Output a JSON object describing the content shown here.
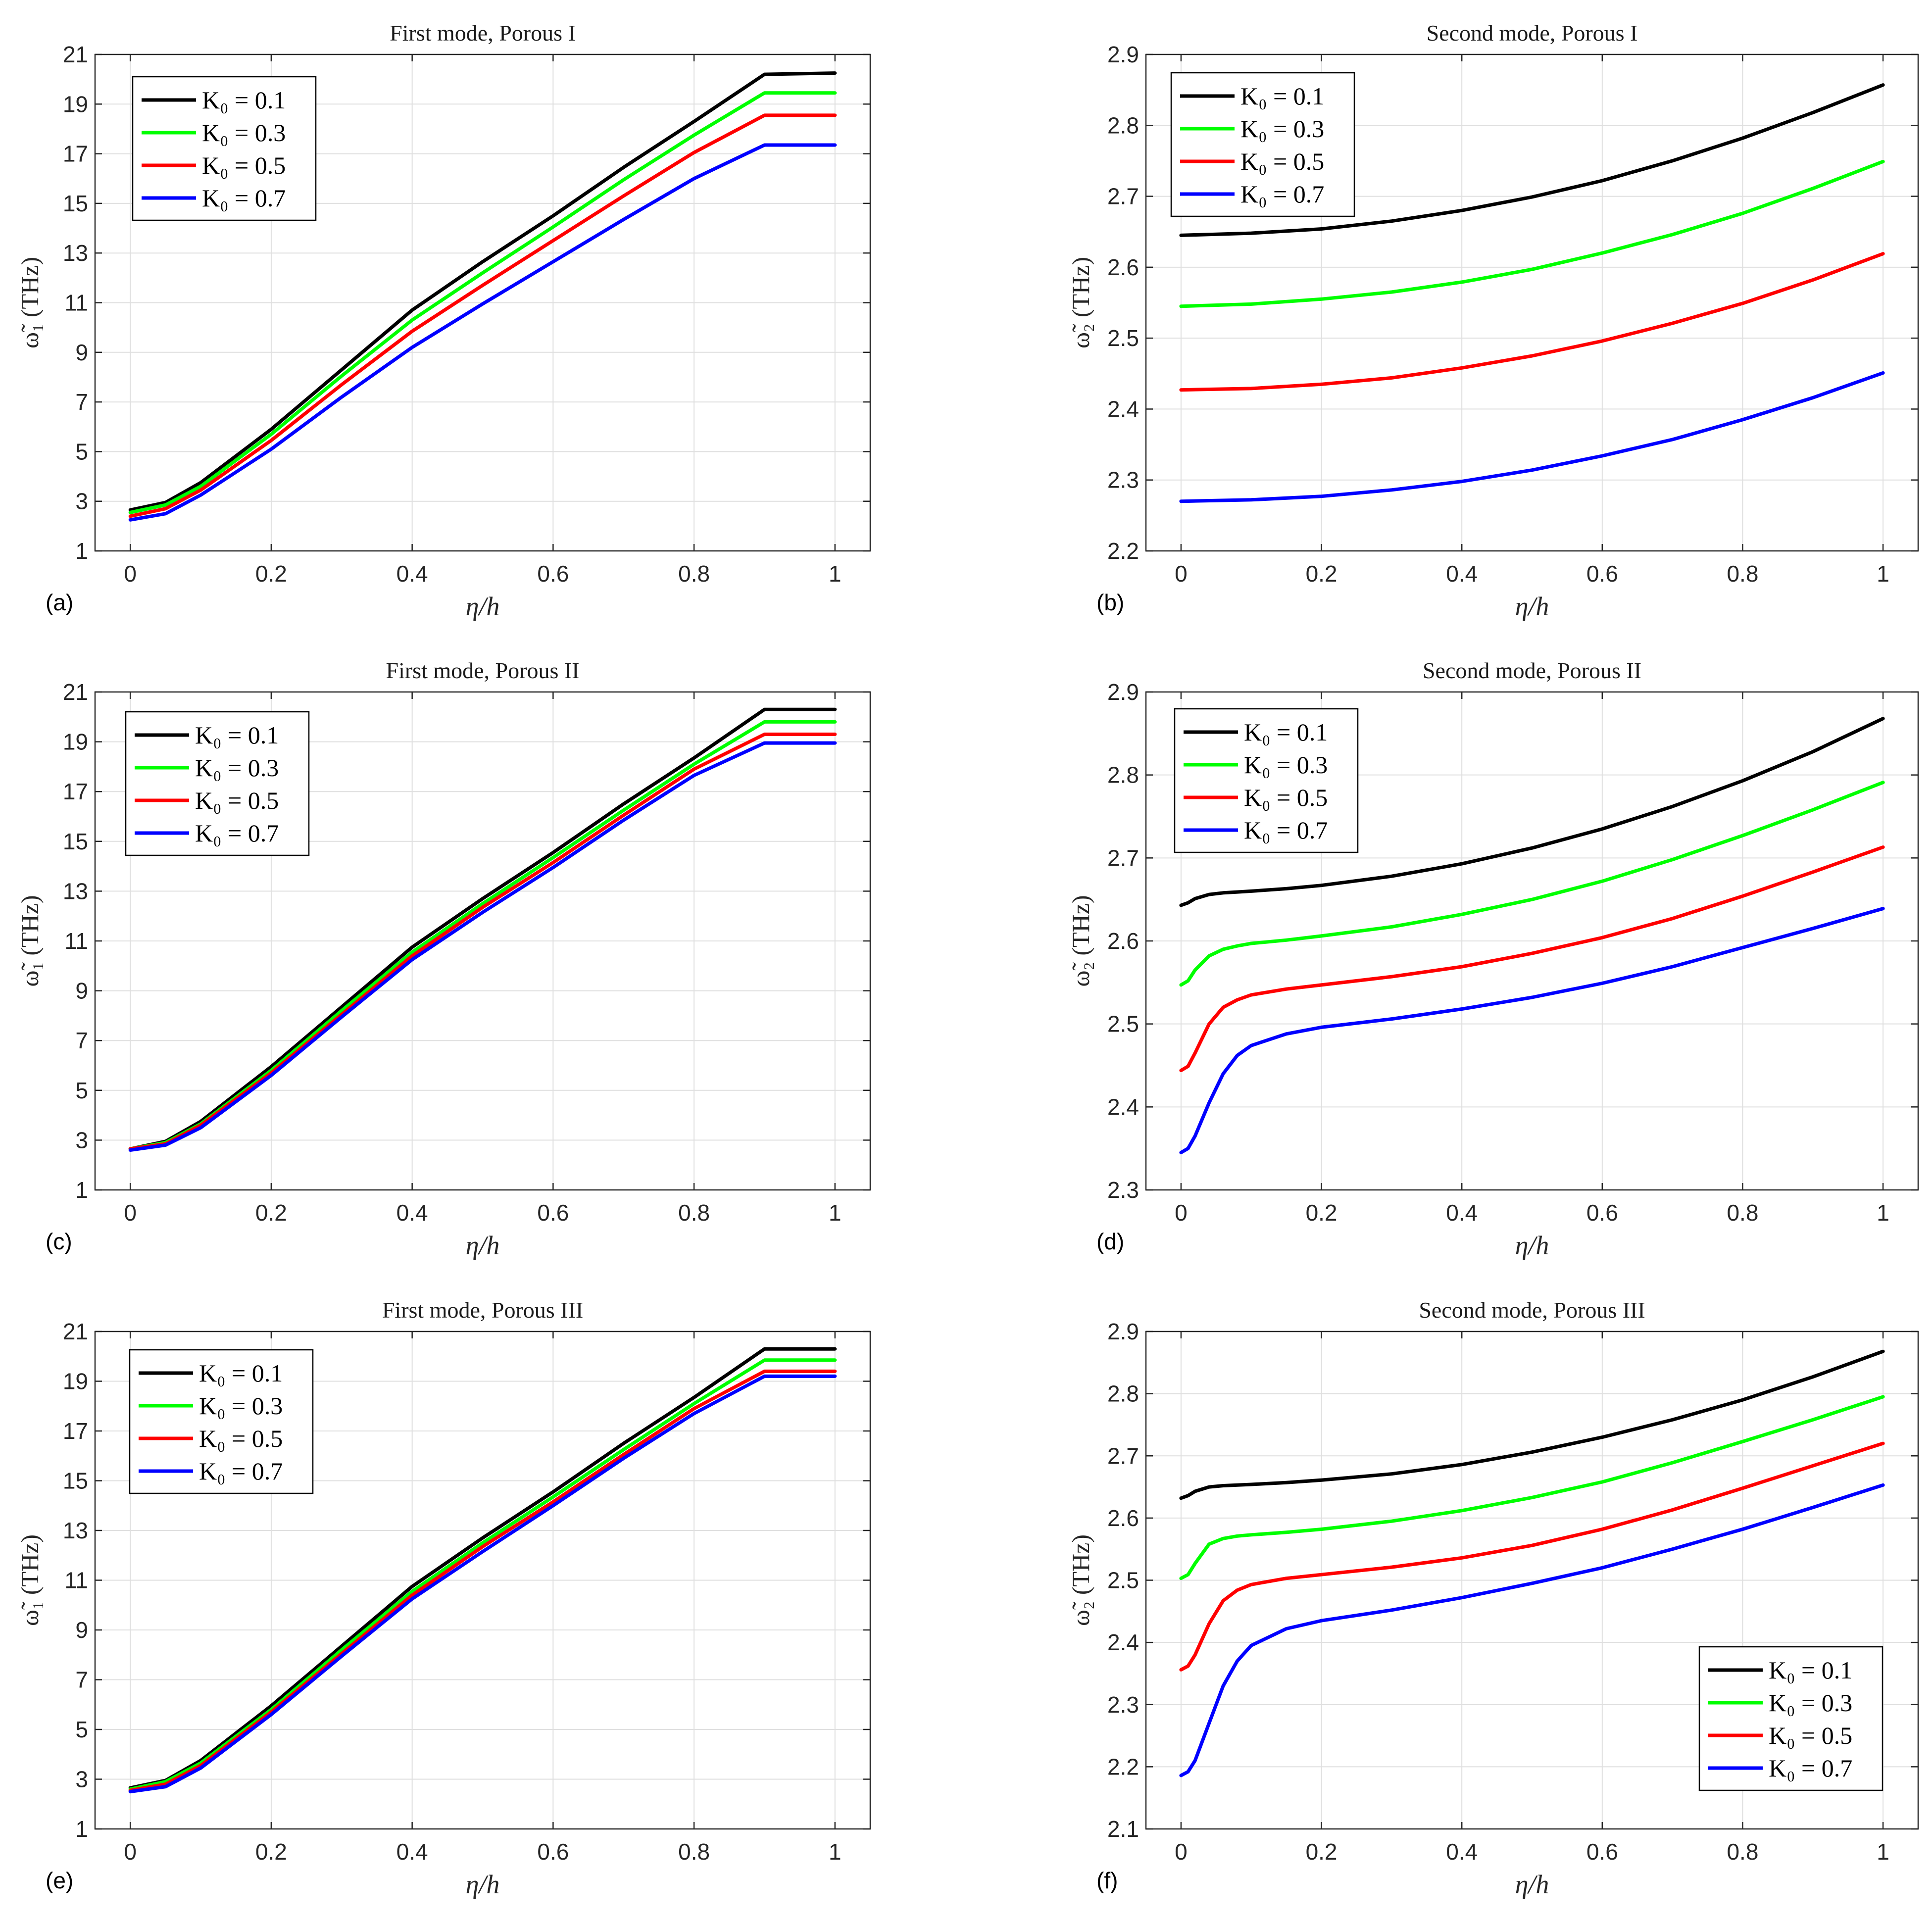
{
  "colors": {
    "black": "#000000",
    "green": "#00ff00",
    "red": "#ff0000",
    "blue": "#0000ff"
  },
  "chart_data": [
    {
      "id": "a",
      "type": "line",
      "title": "First mode, Porous I",
      "panel_label": "(a)",
      "xlabel": "η/h",
      "ylabel": "ω̃₁ (THz)",
      "xlim": [
        -0.05,
        1.05
      ],
      "ylim": [
        1,
        21
      ],
      "xticks": [
        0,
        0.2,
        0.4,
        0.6,
        0.8,
        1
      ],
      "xtick_labels": [
        "0",
        "0.2",
        "0.4",
        "0.6",
        "0.8",
        "1"
      ],
      "yticks": [
        1,
        3,
        5,
        7,
        9,
        11,
        13,
        15,
        17,
        19,
        21
      ],
      "ytick_labels": [
        "1",
        "3",
        "5",
        "7",
        "9",
        "11",
        "13",
        "15",
        "17",
        "19",
        "21"
      ],
      "legend_loc": "top-left",
      "x": [
        0,
        0.05,
        0.1,
        0.2,
        0.3,
        0.4,
        0.5,
        0.6,
        0.7,
        0.8,
        0.9,
        1
      ],
      "series": [
        {
          "name": "K₀ = 0.1",
          "color": "black",
          "values": [
            2.65,
            2.95,
            3.75,
            5.9,
            8.3,
            10.7,
            12.65,
            14.5,
            16.45,
            18.3,
            20.2,
            20.25
          ]
        },
        {
          "name": "K₀ = 0.3",
          "color": "green",
          "values": [
            2.55,
            2.85,
            3.6,
            5.7,
            8.05,
            10.3,
            12.2,
            14.05,
            15.95,
            17.75,
            19.45,
            19.45
          ]
        },
        {
          "name": "K₀ = 0.5",
          "color": "red",
          "values": [
            2.4,
            2.7,
            3.45,
            5.45,
            7.7,
            9.85,
            11.7,
            13.5,
            15.3,
            17.05,
            18.55,
            18.55
          ]
        },
        {
          "name": "K₀ = 0.7",
          "color": "blue",
          "values": [
            2.25,
            2.5,
            3.25,
            5.1,
            7.2,
            9.2,
            10.95,
            12.65,
            14.35,
            16.0,
            17.35,
            17.35
          ]
        }
      ]
    },
    {
      "id": "b",
      "type": "line",
      "title": "Second mode, Porous I",
      "panel_label": "(b)",
      "xlabel": "η/h",
      "ylabel": "ω̃₂ (THz)",
      "xlim": [
        -0.05,
        1.05
      ],
      "ylim": [
        2.2,
        2.9
      ],
      "xticks": [
        0,
        0.2,
        0.4,
        0.6,
        0.8,
        1
      ],
      "xtick_labels": [
        "0",
        "0.2",
        "0.4",
        "0.6",
        "0.8",
        "1"
      ],
      "yticks": [
        2.2,
        2.3,
        2.4,
        2.5,
        2.6,
        2.7,
        2.8,
        2.9
      ],
      "ytick_labels": [
        "2.2",
        "2.3",
        "2.4",
        "2.5",
        "2.6",
        "2.7",
        "2.8",
        "2.9"
      ],
      "legend_loc": "top-left",
      "x": [
        0,
        0.1,
        0.2,
        0.3,
        0.4,
        0.5,
        0.6,
        0.7,
        0.8,
        0.9,
        1
      ],
      "series": [
        {
          "name": "K₀ = 0.1",
          "color": "black",
          "values": [
            2.645,
            2.648,
            2.654,
            2.665,
            2.68,
            2.699,
            2.722,
            2.75,
            2.782,
            2.818,
            2.857
          ]
        },
        {
          "name": "K₀ = 0.3",
          "color": "green",
          "values": [
            2.545,
            2.548,
            2.555,
            2.565,
            2.579,
            2.597,
            2.62,
            2.646,
            2.676,
            2.711,
            2.749
          ]
        },
        {
          "name": "K₀ = 0.5",
          "color": "red",
          "values": [
            2.427,
            2.429,
            2.435,
            2.444,
            2.458,
            2.475,
            2.496,
            2.521,
            2.549,
            2.582,
            2.619
          ]
        },
        {
          "name": "K₀ = 0.7",
          "color": "blue",
          "values": [
            2.27,
            2.272,
            2.277,
            2.286,
            2.298,
            2.314,
            2.334,
            2.357,
            2.385,
            2.416,
            2.451
          ]
        }
      ]
    },
    {
      "id": "c",
      "type": "line",
      "title": "First mode, Porous II",
      "panel_label": "(c)",
      "xlabel": "η/h",
      "ylabel": "ω̃₁ (THz)",
      "xlim": [
        -0.05,
        1.05
      ],
      "ylim": [
        1,
        21
      ],
      "xticks": [
        0,
        0.2,
        0.4,
        0.6,
        0.8,
        1
      ],
      "xtick_labels": [
        "0",
        "0.2",
        "0.4",
        "0.6",
        "0.8",
        "1"
      ],
      "yticks": [
        1,
        3,
        5,
        7,
        9,
        11,
        13,
        15,
        17,
        19,
        21
      ],
      "ytick_labels": [
        "1",
        "3",
        "5",
        "7",
        "9",
        "11",
        "13",
        "15",
        "17",
        "19",
        "21"
      ],
      "legend_loc": "top-left",
      "x": [
        0,
        0.05,
        0.1,
        0.2,
        0.3,
        0.4,
        0.5,
        0.6,
        0.7,
        0.8,
        0.9,
        1
      ],
      "series": [
        {
          "name": "K₀ = 0.1",
          "color": "black",
          "values": [
            2.65,
            2.95,
            3.75,
            5.95,
            8.35,
            10.75,
            12.7,
            14.55,
            16.5,
            18.35,
            20.3,
            20.3
          ]
        },
        {
          "name": "K₀ = 0.3",
          "color": "green",
          "values": [
            2.65,
            2.9,
            3.65,
            5.8,
            8.2,
            10.55,
            12.5,
            14.35,
            16.25,
            18.1,
            19.8,
            19.8
          ]
        },
        {
          "name": "K₀ = 0.5",
          "color": "red",
          "values": [
            2.65,
            2.85,
            3.6,
            5.7,
            8.05,
            10.4,
            12.35,
            14.15,
            16.05,
            17.9,
            19.3,
            19.3
          ]
        },
        {
          "name": "K₀ = 0.7",
          "color": "blue",
          "values": [
            2.6,
            2.8,
            3.5,
            5.6,
            7.95,
            10.25,
            12.15,
            13.95,
            15.85,
            17.65,
            18.95,
            18.95
          ]
        }
      ]
    },
    {
      "id": "d",
      "type": "line",
      "title": "Second mode, Porous II",
      "panel_label": "(d)",
      "xlabel": "η/h",
      "ylabel": "ω̃₂ (THz)",
      "xlim": [
        -0.05,
        1.05
      ],
      "ylim": [
        2.3,
        2.9
      ],
      "xticks": [
        0,
        0.2,
        0.4,
        0.6,
        0.8,
        1
      ],
      "xtick_labels": [
        "0",
        "0.2",
        "0.4",
        "0.6",
        "0.8",
        "1"
      ],
      "yticks": [
        2.3,
        2.4,
        2.5,
        2.6,
        2.7,
        2.8,
        2.9
      ],
      "ytick_labels": [
        "2.3",
        "2.4",
        "2.5",
        "2.6",
        "2.7",
        "2.8",
        "2.9"
      ],
      "legend_loc": "top-left",
      "x": [
        0,
        0.01,
        0.02,
        0.04,
        0.06,
        0.08,
        0.1,
        0.15,
        0.2,
        0.3,
        0.4,
        0.5,
        0.6,
        0.7,
        0.8,
        0.9,
        1
      ],
      "series": [
        {
          "name": "K₀ = 0.1",
          "color": "black",
          "values": [
            2.643,
            2.646,
            2.651,
            2.656,
            2.658,
            2.659,
            2.66,
            2.663,
            2.667,
            2.678,
            2.693,
            2.712,
            2.735,
            2.762,
            2.793,
            2.828,
            2.868
          ]
        },
        {
          "name": "K₀ = 0.3",
          "color": "green",
          "values": [
            2.547,
            2.552,
            2.565,
            2.582,
            2.59,
            2.594,
            2.597,
            2.601,
            2.606,
            2.617,
            2.632,
            2.65,
            2.672,
            2.698,
            2.727,
            2.758,
            2.791
          ]
        },
        {
          "name": "K₀ = 0.5",
          "color": "red",
          "values": [
            2.444,
            2.449,
            2.465,
            2.5,
            2.52,
            2.529,
            2.535,
            2.542,
            2.547,
            2.557,
            2.569,
            2.585,
            2.604,
            2.627,
            2.654,
            2.683,
            2.713
          ]
        },
        {
          "name": "K₀ = 0.7",
          "color": "blue",
          "values": [
            2.345,
            2.35,
            2.365,
            2.405,
            2.44,
            2.462,
            2.474,
            2.488,
            2.496,
            2.506,
            2.518,
            2.532,
            2.549,
            2.569,
            2.592,
            2.615,
            2.639
          ]
        }
      ]
    },
    {
      "id": "e",
      "type": "line",
      "title": "First mode, Porous III",
      "panel_label": "(e)",
      "xlabel": "η/h",
      "ylabel": "ω̃₁ (THz)",
      "xlim": [
        -0.05,
        1.05
      ],
      "ylim": [
        1,
        21
      ],
      "xticks": [
        0,
        0.2,
        0.4,
        0.6,
        0.8,
        1
      ],
      "xtick_labels": [
        "0",
        "0.2",
        "0.4",
        "0.6",
        "0.8",
        "1"
      ],
      "yticks": [
        1,
        3,
        5,
        7,
        9,
        11,
        13,
        15,
        17,
        19,
        21
      ],
      "ytick_labels": [
        "1",
        "3",
        "5",
        "7",
        "9",
        "11",
        "13",
        "15",
        "17",
        "19",
        "21"
      ],
      "legend_loc": "top-left",
      "x": [
        0,
        0.05,
        0.1,
        0.2,
        0.3,
        0.4,
        0.5,
        0.6,
        0.7,
        0.8,
        0.9,
        1
      ],
      "series": [
        {
          "name": "K₀ = 0.1",
          "color": "black",
          "values": [
            2.65,
            2.95,
            3.75,
            5.95,
            8.35,
            10.75,
            12.7,
            14.55,
            16.5,
            18.35,
            20.3,
            20.3
          ]
        },
        {
          "name": "K₀ = 0.3",
          "color": "green",
          "values": [
            2.6,
            2.9,
            3.65,
            5.8,
            8.2,
            10.55,
            12.5,
            14.35,
            16.25,
            18.1,
            19.85,
            19.85
          ]
        },
        {
          "name": "K₀ = 0.5",
          "color": "red",
          "values": [
            2.55,
            2.8,
            3.55,
            5.7,
            8.05,
            10.4,
            12.35,
            14.15,
            16.05,
            17.9,
            19.4,
            19.4
          ]
        },
        {
          "name": "K₀ = 0.7",
          "color": "blue",
          "values": [
            2.5,
            2.7,
            3.45,
            5.6,
            7.95,
            10.25,
            12.15,
            14.0,
            15.9,
            17.7,
            19.2,
            19.2
          ]
        }
      ]
    },
    {
      "id": "f",
      "type": "line",
      "title": "Second mode, Porous III",
      "panel_label": "(f)",
      "xlabel": "η/h",
      "ylabel": "ω̃₂ (THz)",
      "xlim": [
        -0.05,
        1.05
      ],
      "ylim": [
        2.1,
        2.9
      ],
      "xticks": [
        0,
        0.2,
        0.4,
        0.6,
        0.8,
        1
      ],
      "xtick_labels": [
        "0",
        "0.2",
        "0.4",
        "0.6",
        "0.8",
        "1"
      ],
      "yticks": [
        2.1,
        2.2,
        2.3,
        2.4,
        2.5,
        2.6,
        2.7,
        2.8,
        2.9
      ],
      "ytick_labels": [
        "2.1",
        "2.2",
        "2.3",
        "2.4",
        "2.5",
        "2.6",
        "2.7",
        "2.8",
        "2.9"
      ],
      "legend_loc": "bottom-right",
      "x": [
        0,
        0.01,
        0.02,
        0.04,
        0.06,
        0.08,
        0.1,
        0.15,
        0.2,
        0.3,
        0.4,
        0.5,
        0.6,
        0.7,
        0.8,
        0.9,
        1
      ],
      "series": [
        {
          "name": "K₀ = 0.1",
          "color": "black",
          "values": [
            2.632,
            2.636,
            2.643,
            2.65,
            2.652,
            2.653,
            2.654,
            2.657,
            2.661,
            2.671,
            2.686,
            2.706,
            2.73,
            2.758,
            2.79,
            2.827,
            2.868
          ]
        },
        {
          "name": "K₀ = 0.3",
          "color": "green",
          "values": [
            2.503,
            2.509,
            2.527,
            2.558,
            2.567,
            2.571,
            2.573,
            2.577,
            2.582,
            2.595,
            2.612,
            2.633,
            2.658,
            2.689,
            2.723,
            2.758,
            2.795
          ]
        },
        {
          "name": "K₀ = 0.5",
          "color": "red",
          "values": [
            2.356,
            2.362,
            2.38,
            2.43,
            2.467,
            2.484,
            2.493,
            2.503,
            2.509,
            2.521,
            2.536,
            2.556,
            2.582,
            2.613,
            2.648,
            2.684,
            2.72
          ]
        },
        {
          "name": "K₀ = 0.7",
          "color": "blue",
          "values": [
            2.186,
            2.192,
            2.21,
            2.27,
            2.33,
            2.37,
            2.395,
            2.422,
            2.435,
            2.452,
            2.472,
            2.495,
            2.52,
            2.55,
            2.582,
            2.617,
            2.653
          ]
        }
      ]
    }
  ]
}
